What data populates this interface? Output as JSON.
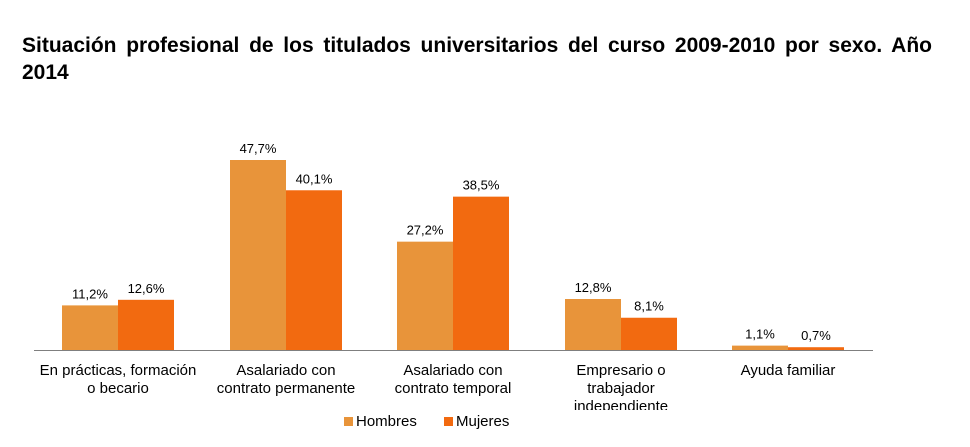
{
  "chart_data": {
    "type": "bar",
    "title": "Situación profesional de los titulados universitarios del curso 2009-2010 por sexo. Año 2014",
    "categories": [
      [
        "En prácticas, formación",
        "o becario"
      ],
      [
        "Asalariado con",
        "contrato permanente"
      ],
      [
        "Asalariado con",
        "contrato temporal"
      ],
      [
        "Empresario o",
        "trabajador",
        "independiente"
      ],
      [
        "Ayuda familiar"
      ]
    ],
    "series": [
      {
        "name": "Hombres",
        "color": "#E8943A",
        "values": [
          11.2,
          47.7,
          27.2,
          12.8,
          1.1
        ],
        "labels": [
          "11,2%",
          "47,7%",
          "27,2%",
          "12,8%",
          "1,1%"
        ]
      },
      {
        "name": "Mujeres",
        "color": "#F26A10",
        "values": [
          12.6,
          40.1,
          38.5,
          8.1,
          0.7
        ],
        "labels": [
          "12,6%",
          "40,1%",
          "38,5%",
          "8,1%",
          "0,7%"
        ]
      }
    ],
    "ylim": [
      0,
      50
    ],
    "grid": false,
    "legend_position": "bottom"
  }
}
